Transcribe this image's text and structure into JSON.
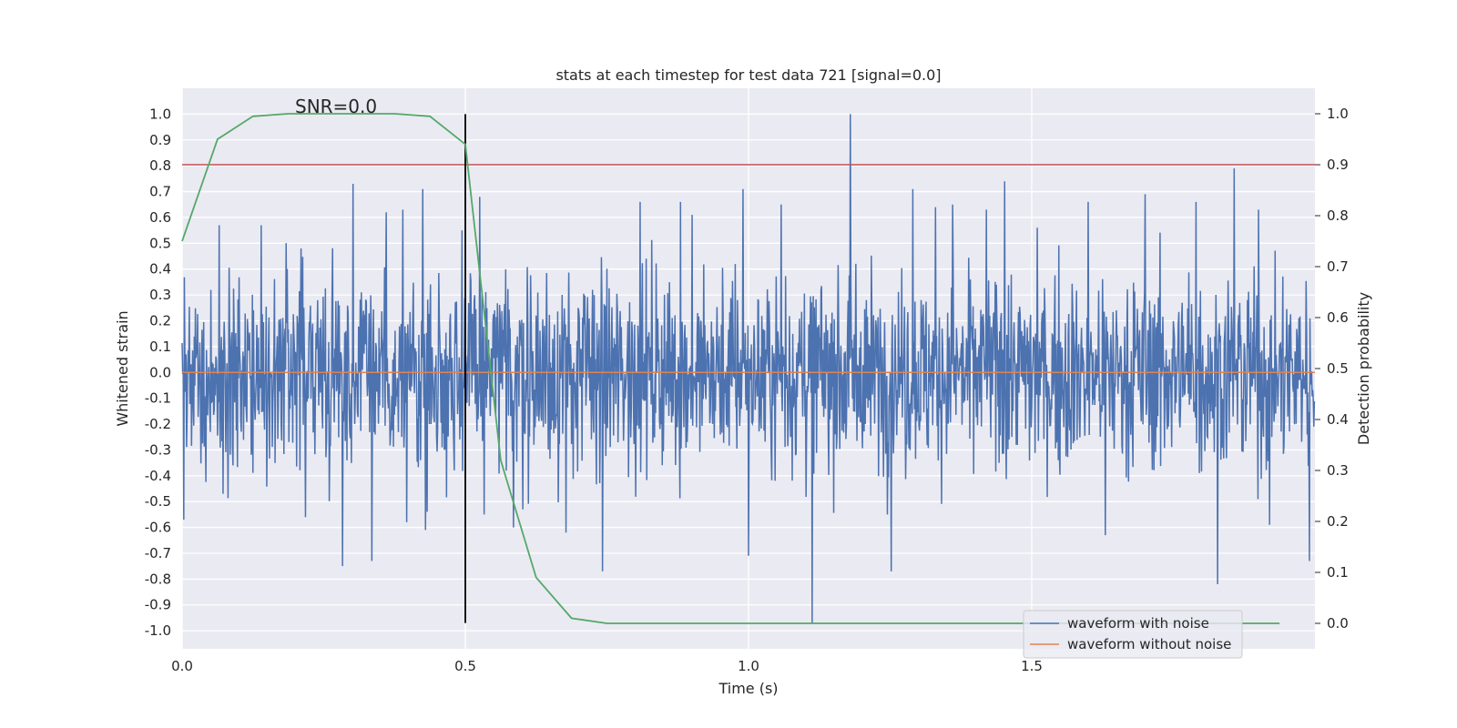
{
  "chart_data": {
    "type": "line",
    "title": "stats at each timestep for test data 721 [signal=0.0]",
    "xlabel": "Time (s)",
    "ylabel_left": "Whitened strain",
    "ylabel_right": "Detection probability",
    "xlim": [
      0.0,
      2.0
    ],
    "ylim_left": [
      -1.07,
      1.1
    ],
    "ylim_right": [
      -0.05,
      1.05
    ],
    "x_ticks": [
      "0.0",
      "0.5",
      "1.0",
      "1.5"
    ],
    "y_left_ticks": [
      "-1.0",
      "-0.9",
      "-0.8",
      "-0.7",
      "-0.6",
      "-0.5",
      "-0.4",
      "-0.3",
      "-0.2",
      "-0.1",
      "0.0",
      "0.1",
      "0.2",
      "0.3",
      "0.4",
      "0.5",
      "0.6",
      "0.7",
      "0.8",
      "0.9",
      "1.0"
    ],
    "y_right_ticks": [
      "0.0",
      "0.1",
      "0.2",
      "0.3",
      "0.4",
      "0.5",
      "0.6",
      "0.7",
      "0.8",
      "0.9",
      "1.0"
    ],
    "grid": true,
    "legend_position": "lower-right",
    "annotation": {
      "text": "SNR=0.0",
      "x": 0.2,
      "y": 1.0
    },
    "vline": {
      "x": 0.5,
      "ymin": -0.97,
      "ymax": 1.0,
      "color": "#000000"
    },
    "threshold": {
      "y_right": 0.9,
      "color": "#c44e52"
    },
    "series": [
      {
        "name": "waveform with noise",
        "axis": "left",
        "color": "#4c72b0",
        "n_samples": 2048,
        "amplitude_scale": 0.26,
        "min": -0.97,
        "max": 1.0,
        "spikes": [
          {
            "x": 0.003,
            "y": -0.57
          },
          {
            "x": 0.065,
            "y": 0.57
          },
          {
            "x": 0.072,
            "y": -0.47
          },
          {
            "x": 0.14,
            "y": 0.57
          },
          {
            "x": 0.21,
            "y": 0.48
          },
          {
            "x": 0.218,
            "y": -0.56
          },
          {
            "x": 0.283,
            "y": -0.75
          },
          {
            "x": 0.302,
            "y": 0.73
          },
          {
            "x": 0.335,
            "y": -0.73
          },
          {
            "x": 0.36,
            "y": 0.62
          },
          {
            "x": 0.39,
            "y": 0.63
          },
          {
            "x": 0.396,
            "y": -0.58
          },
          {
            "x": 0.425,
            "y": 0.71
          },
          {
            "x": 0.43,
            "y": -0.61
          },
          {
            "x": 0.494,
            "y": 0.55
          },
          {
            "x": 0.525,
            "y": 0.68
          },
          {
            "x": 0.533,
            "y": -0.55
          },
          {
            "x": 0.585,
            "y": -0.6
          },
          {
            "x": 0.678,
            "y": -0.62
          },
          {
            "x": 0.742,
            "y": -0.77
          },
          {
            "x": 0.809,
            "y": 0.66
          },
          {
            "x": 0.88,
            "y": 0.66
          },
          {
            "x": 0.9,
            "y": 0.61
          },
          {
            "x": 0.99,
            "y": 0.71
          },
          {
            "x": 1.0,
            "y": -0.71
          },
          {
            "x": 1.058,
            "y": 0.65
          },
          {
            "x": 1.112,
            "y": -0.97
          },
          {
            "x": 1.18,
            "y": 1.0
          },
          {
            "x": 1.252,
            "y": -0.77
          },
          {
            "x": 1.29,
            "y": 0.71
          },
          {
            "x": 1.33,
            "y": 0.64
          },
          {
            "x": 1.36,
            "y": 0.65
          },
          {
            "x": 1.42,
            "y": 0.63
          },
          {
            "x": 1.452,
            "y": 0.74
          },
          {
            "x": 1.51,
            "y": 0.56
          },
          {
            "x": 1.6,
            "y": 0.66
          },
          {
            "x": 1.63,
            "y": -0.63
          },
          {
            "x": 1.7,
            "y": 0.69
          },
          {
            "x": 1.79,
            "y": 0.66
          },
          {
            "x": 1.828,
            "y": -0.82
          },
          {
            "x": 1.857,
            "y": 0.79
          },
          {
            "x": 1.9,
            "y": 0.63
          },
          {
            "x": 1.92,
            "y": -0.59
          },
          {
            "x": 1.99,
            "y": -0.73
          }
        ]
      },
      {
        "name": "waveform without noise",
        "axis": "left",
        "color": "#dd8452",
        "x": [
          0.0,
          2.0
        ],
        "y": [
          0.0,
          0.0
        ]
      },
      {
        "name": "detection probability",
        "axis": "right",
        "color": "#55a868",
        "x": [
          0.0,
          0.0625,
          0.125,
          0.1875,
          0.25,
          0.3125,
          0.375,
          0.4375,
          0.5,
          0.5625,
          0.625,
          0.6875,
          0.75,
          0.8125,
          0.875,
          0.9375,
          1.0,
          1.0625,
          1.125,
          1.1875,
          1.25,
          1.3125,
          1.375,
          1.4375,
          1.5,
          1.5625,
          1.625,
          1.6875,
          1.75,
          1.8125,
          1.875,
          1.9375
        ],
        "y": [
          0.75,
          0.95,
          0.995,
          1.0,
          1.0,
          1.0,
          1.0,
          0.995,
          0.94,
          0.32,
          0.09,
          0.01,
          0.0,
          0.0,
          0.0,
          0.0,
          0.0,
          0.0,
          0.0,
          0.0,
          0.0,
          0.0,
          0.0,
          0.0,
          0.0,
          0.0,
          0.0,
          0.0,
          0.0,
          0.0,
          0.0,
          0.0
        ]
      }
    ]
  }
}
